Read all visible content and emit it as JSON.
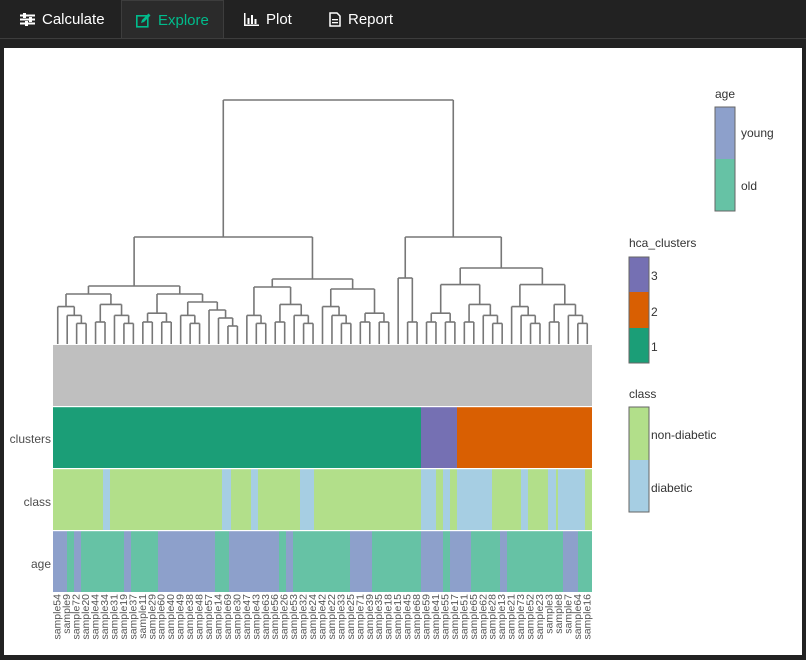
{
  "tabs": [
    {
      "label": "Calculate",
      "icon": "sliders-icon",
      "active": false
    },
    {
      "label": "Explore",
      "icon": "edit-icon",
      "active": true
    },
    {
      "label": "Plot",
      "icon": "bar-chart-icon",
      "active": false
    },
    {
      "label": "Report",
      "icon": "file-icon",
      "active": false
    }
  ],
  "heatmap": {
    "row_labels": [
      "clusters",
      "class",
      "age"
    ],
    "sample_labels": [
      "sample54",
      "sample9",
      "sample72",
      "sample20",
      "sample44",
      "sample34",
      "sample31",
      "sample19",
      "sample37",
      "sample11",
      "sample29",
      "sample60",
      "sample40",
      "sample49",
      "sample38",
      "sample48",
      "sample57",
      "sample14",
      "sample69",
      "sample30",
      "sample47",
      "sample43",
      "sample63",
      "sample56",
      "sample26",
      "sample53",
      "sample32",
      "sample24",
      "sample42",
      "sample22",
      "sample33",
      "sample25",
      "sample71",
      "sample39",
      "sample35",
      "sample18",
      "sample15",
      "sample45",
      "sample68",
      "sample59",
      "sample41",
      "sample55",
      "sample17",
      "sample51",
      "sample65",
      "sample62",
      "sample28",
      "sample13",
      "sample21",
      "sample73",
      "sample52",
      "sample23",
      "sample3",
      "sample8",
      "sample7",
      "sample64",
      "sample16"
    ],
    "colors": {
      "background_row": "#bfbfbf",
      "cluster_1": "#1b9e77",
      "cluster_2": "#d95f02",
      "cluster_3": "#7570b3",
      "non_diabetic": "#b2df8a",
      "diabetic": "#a6cee3",
      "young": "#8da0cb",
      "old": "#66c2a5"
    }
  },
  "legends": {
    "age": {
      "title": "age",
      "items": [
        "young",
        "old"
      ]
    },
    "clusters": {
      "title": "hca_clusters",
      "items": [
        "3",
        "2",
        "1"
      ]
    },
    "class": {
      "title": "class",
      "items": [
        "non-diabetic",
        "diabetic"
      ]
    }
  }
}
